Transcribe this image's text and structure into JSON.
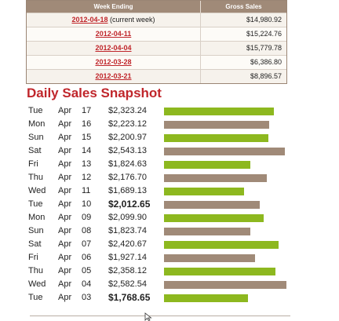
{
  "weekly_table": {
    "headers": [
      "Week Ending",
      "Gross Sales"
    ],
    "rows": [
      {
        "date": "2012-04-18",
        "note": "(current week)",
        "amount": "$14,980.92"
      },
      {
        "date": "2012-04-11",
        "note": "",
        "amount": "$15,224.76"
      },
      {
        "date": "2012-04-04",
        "note": "",
        "amount": "$15,779.78"
      },
      {
        "date": "2012-03-28",
        "note": "",
        "amount": "$6,386.80"
      },
      {
        "date": "2012-03-21",
        "note": "",
        "amount": "$8,896.57"
      }
    ]
  },
  "daily": {
    "title": "Daily Sales Snapshot",
    "colors": {
      "green": "#8db81f",
      "brown": "#a08a78",
      "title": "#c0262b"
    },
    "rows": [
      {
        "day": "Tue",
        "month": "Apr",
        "date": "17",
        "amount": "$2,323.24",
        "value": 2323.24,
        "color": "green",
        "bold": false
      },
      {
        "day": "Mon",
        "month": "Apr",
        "date": "16",
        "amount": "$2,223.12",
        "value": 2223.12,
        "color": "brown",
        "bold": false
      },
      {
        "day": "Sun",
        "month": "Apr",
        "date": "15",
        "amount": "$2,200.97",
        "value": 2200.97,
        "color": "green",
        "bold": false
      },
      {
        "day": "Sat",
        "month": "Apr",
        "date": "14",
        "amount": "$2,543.13",
        "value": 2543.13,
        "color": "brown",
        "bold": false
      },
      {
        "day": "Fri",
        "month": "Apr",
        "date": "13",
        "amount": "$1,824.63",
        "value": 1824.63,
        "color": "green",
        "bold": false
      },
      {
        "day": "Thu",
        "month": "Apr",
        "date": "12",
        "amount": "$2,176.70",
        "value": 2176.7,
        "color": "brown",
        "bold": false
      },
      {
        "day": "Wed",
        "month": "Apr",
        "date": "11",
        "amount": "$1,689.13",
        "value": 1689.13,
        "color": "green",
        "bold": false
      },
      {
        "day": "Tue",
        "month": "Apr",
        "date": "10",
        "amount": "$2,012.65",
        "value": 2012.65,
        "color": "brown",
        "bold": true
      },
      {
        "day": "Mon",
        "month": "Apr",
        "date": "09",
        "amount": "$2,099.90",
        "value": 2099.9,
        "color": "green",
        "bold": false
      },
      {
        "day": "Sun",
        "month": "Apr",
        "date": "08",
        "amount": "$1,823.74",
        "value": 1823.74,
        "color": "brown",
        "bold": false
      },
      {
        "day": "Sat",
        "month": "Apr",
        "date": "07",
        "amount": "$2,420.67",
        "value": 2420.67,
        "color": "green",
        "bold": false
      },
      {
        "day": "Fri",
        "month": "Apr",
        "date": "06",
        "amount": "$1,927.14",
        "value": 1927.14,
        "color": "brown",
        "bold": false
      },
      {
        "day": "Thu",
        "month": "Apr",
        "date": "05",
        "amount": "$2,358.12",
        "value": 2358.12,
        "color": "green",
        "bold": false
      },
      {
        "day": "Wed",
        "month": "Apr",
        "date": "04",
        "amount": "$2,582.54",
        "value": 2582.54,
        "color": "brown",
        "bold": false
      },
      {
        "day": "Tue",
        "month": "Apr",
        "date": "03",
        "amount": "$1,768.65",
        "value": 1768.65,
        "color": "green",
        "bold": true
      }
    ]
  }
}
